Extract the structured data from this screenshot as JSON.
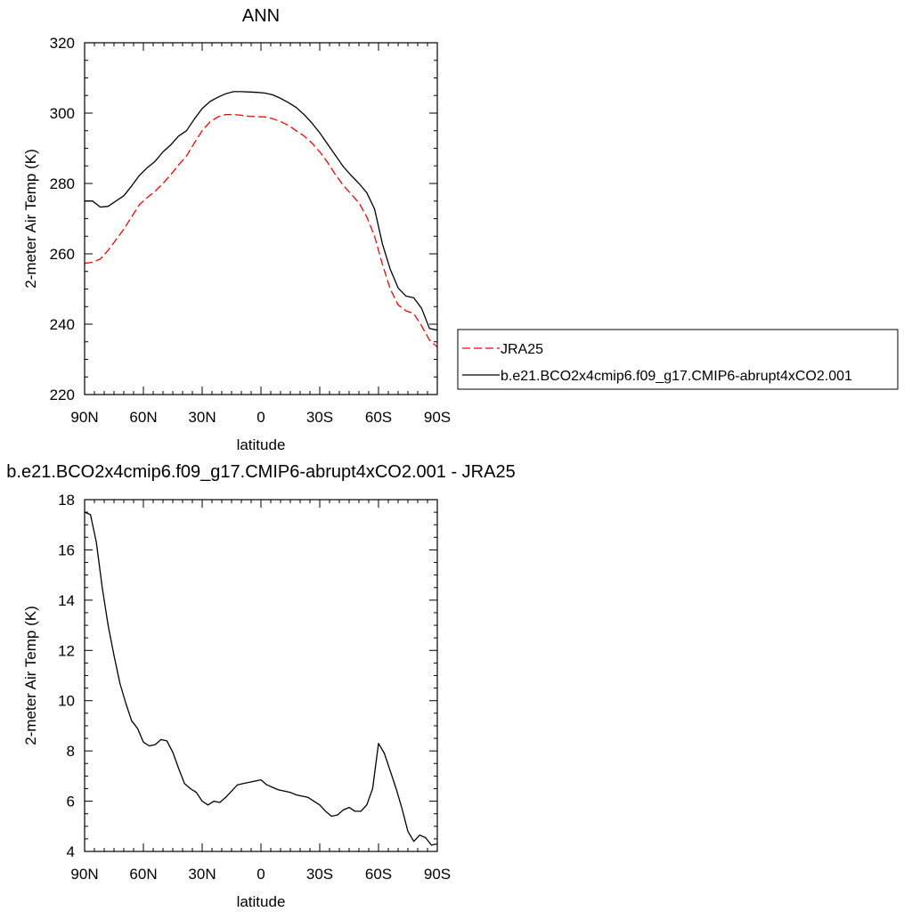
{
  "chart_data": [
    {
      "type": "line",
      "title": "ANN",
      "xlabel": "latitude",
      "ylabel": "2-meter Air Temp (K)",
      "xlim": [
        90,
        -90
      ],
      "ylim": [
        220,
        320
      ],
      "xticks": [
        90,
        60,
        30,
        0,
        -30,
        -60,
        -90
      ],
      "xtick_labels": [
        "90N",
        "60N",
        "30N",
        "0",
        "30S",
        "60S",
        "90S"
      ],
      "yticks": [
        220,
        240,
        260,
        280,
        300,
        320
      ],
      "ytick_labels": [
        "220",
        "240",
        "260",
        "280",
        "300",
        "320"
      ],
      "grid": false,
      "legend_placement": "right",
      "series": [
        {
          "name": "JRA25",
          "color": "#ff0000",
          "dash": "dashed",
          "x": [
            90,
            86,
            82,
            78,
            74,
            70,
            66,
            62,
            58,
            54,
            50,
            46,
            42,
            38,
            34,
            30,
            26,
            22,
            18,
            14,
            10,
            6,
            2,
            -2,
            -6,
            -10,
            -14,
            -18,
            -22,
            -26,
            -30,
            -34,
            -38,
            -42,
            -46,
            -50,
            -54,
            -58,
            -62,
            -66,
            -70,
            -74,
            -78,
            -82,
            -86,
            -90
          ],
          "y": [
            257.3,
            257.6,
            258.5,
            261.0,
            264.0,
            267.0,
            270.5,
            274.0,
            276.0,
            277.8,
            280.0,
            282.5,
            285.3,
            287.8,
            291.5,
            295.0,
            297.5,
            298.9,
            299.6,
            299.6,
            299.4,
            299.1,
            299.0,
            298.9,
            298.4,
            297.6,
            296.5,
            295.0,
            293.5,
            291.5,
            289.0,
            286.0,
            282.5,
            279.5,
            277.0,
            274.5,
            270.5,
            265.0,
            257.0,
            250.0,
            245.5,
            243.8,
            243.0,
            239.5,
            235.5,
            233.5
          ]
        },
        {
          "name": "b.e21.BCO2x4cmip6.f09_g17.CMIP6-abrupt4xCO2.001",
          "color": "#000000",
          "dash": "solid",
          "x": [
            90,
            86,
            82,
            78,
            74,
            70,
            66,
            62,
            58,
            54,
            50,
            46,
            42,
            38,
            34,
            30,
            26,
            22,
            18,
            14,
            10,
            6,
            2,
            -2,
            -6,
            -10,
            -14,
            -18,
            -22,
            -26,
            -30,
            -34,
            -38,
            -42,
            -46,
            -50,
            -54,
            -58,
            -62,
            -66,
            -70,
            -74,
            -78,
            -82,
            -86,
            -90
          ],
          "y": [
            275.0,
            275.0,
            273.3,
            273.5,
            275.0,
            276.5,
            279.3,
            282.3,
            284.5,
            286.3,
            289.0,
            291.0,
            293.5,
            295.0,
            298.3,
            301.3,
            303.3,
            304.5,
            305.5,
            306.1,
            306.1,
            306.0,
            305.9,
            305.7,
            305.2,
            304.2,
            303.0,
            301.6,
            299.6,
            297.2,
            294.4,
            291.2,
            288.0,
            284.8,
            282.3,
            280.0,
            277.4,
            272.7,
            262.8,
            255.6,
            250.3,
            248.0,
            247.5,
            244.5,
            238.8,
            238.3
          ]
        }
      ]
    },
    {
      "type": "line",
      "title": "b.e21.BCO2x4cmip6.f09_g17.CMIP6-abrupt4xCO2.001 - JRA25",
      "xlabel": "latitude",
      "ylabel": "2-meter Air Temp (K)",
      "xlim": [
        90,
        -90
      ],
      "ylim": [
        4,
        18
      ],
      "xticks": [
        90,
        60,
        30,
        0,
        -30,
        -60,
        -90
      ],
      "xtick_labels": [
        "90N",
        "60N",
        "30N",
        "0",
        "30S",
        "60S",
        "90S"
      ],
      "yticks": [
        4,
        6,
        8,
        10,
        12,
        14,
        16,
        18
      ],
      "ytick_labels": [
        "4",
        "6",
        "8",
        "10",
        "12",
        "14",
        "16",
        "18"
      ],
      "grid": false,
      "series": [
        {
          "color": "#000000",
          "dash": "solid",
          "x": [
            90,
            87,
            84,
            81,
            78,
            75,
            72,
            69,
            66,
            63,
            60,
            57,
            54,
            51,
            48,
            45,
            42,
            39,
            36,
            33,
            30,
            27,
            24,
            21,
            18,
            15,
            12,
            9,
            6,
            3,
            0,
            -3,
            -6,
            -9,
            -12,
            -15,
            -18,
            -21,
            -24,
            -27,
            -30,
            -33,
            -36,
            -39,
            -42,
            -45,
            -48,
            -51,
            -54,
            -57,
            -60,
            -63,
            -66,
            -69,
            -72,
            -75,
            -78,
            -81,
            -84,
            -87,
            -90
          ],
          "y": [
            17.5,
            17.4,
            16.3,
            14.5,
            13.0,
            11.8,
            10.7,
            9.9,
            9.2,
            8.9,
            8.35,
            8.2,
            8.25,
            8.45,
            8.4,
            7.95,
            7.3,
            6.7,
            6.5,
            6.35,
            6.0,
            5.85,
            6.0,
            5.95,
            6.15,
            6.4,
            6.65,
            6.7,
            6.75,
            6.8,
            6.85,
            6.65,
            6.55,
            6.45,
            6.4,
            6.35,
            6.25,
            6.2,
            6.15,
            6.0,
            5.85,
            5.6,
            5.4,
            5.45,
            5.65,
            5.75,
            5.6,
            5.6,
            5.85,
            6.5,
            8.3,
            7.9,
            7.2,
            6.5,
            5.7,
            4.8,
            4.4,
            4.65,
            4.55,
            4.25,
            4.3
          ]
        }
      ]
    }
  ]
}
